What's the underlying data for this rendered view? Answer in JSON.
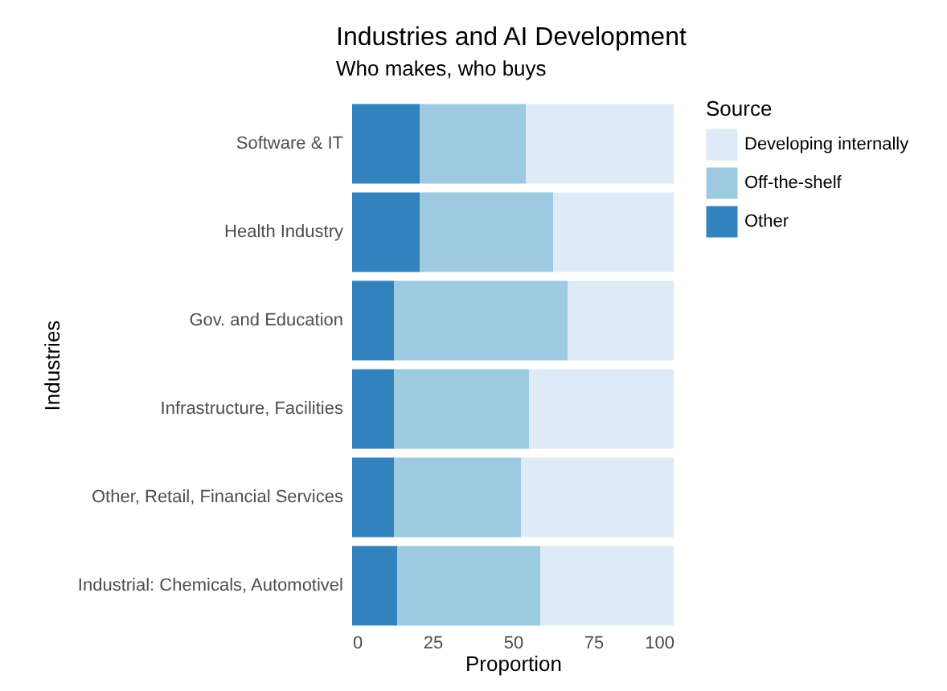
{
  "chart_data": {
    "type": "bar",
    "orientation": "horizontal",
    "stacked": true,
    "title": "Industries and AI Development",
    "subtitle": "Who makes, who buys",
    "xlabel": "Proportion",
    "ylabel": "Industries",
    "legend_title": "Source",
    "legend": "right",
    "categories": [
      "Software & IT",
      "Health Industry",
      "Gov. and Education",
      "Infrastructure, Facilities",
      "Other, Retail, Financial Services",
      "Industrial: Chemicals, Automotivel"
    ],
    "series": [
      {
        "name": "Other",
        "color": "#3182bd",
        "values": [
          21,
          21,
          13,
          13,
          13,
          14
        ]
      },
      {
        "name": "Off-the-shelf",
        "color": "#9ecae1",
        "values": [
          33,
          41.5,
          54,
          42,
          39.5,
          44.5
        ]
      },
      {
        "name": "Developing internally",
        "color": "#deebf7",
        "values": [
          46,
          37.5,
          33,
          45,
          47.5,
          41.5
        ]
      }
    ],
    "xlim": [
      0,
      100
    ],
    "xticks": [
      0,
      25,
      50,
      75,
      100
    ],
    "grid": false
  }
}
